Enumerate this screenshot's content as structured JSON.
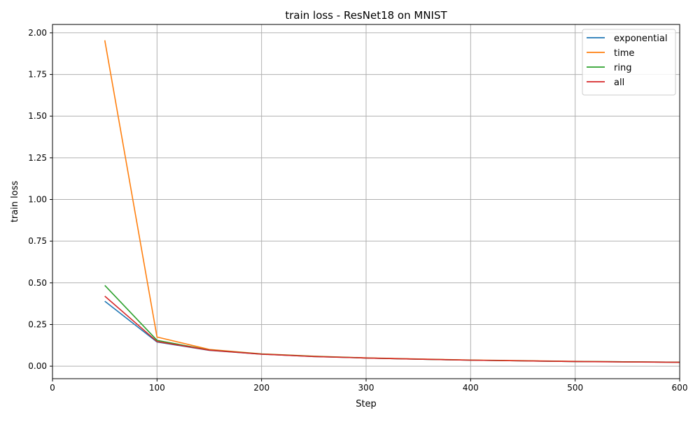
{
  "chart_data": {
    "type": "line",
    "title": "train loss - ResNet18 on MNIST",
    "xlabel": "Step",
    "ylabel": "train loss",
    "xlim": [
      0,
      600
    ],
    "ylim": [
      -0.075,
      2.05
    ],
    "xticks": [
      0,
      100,
      200,
      300,
      400,
      500,
      600
    ],
    "xtick_labels": [
      "0",
      "100",
      "200",
      "300",
      "400",
      "500",
      "600"
    ],
    "yticks": [
      0,
      0.25,
      0.5,
      0.75,
      1.0,
      1.25,
      1.5,
      1.75,
      2.0
    ],
    "ytick_labels": [
      "0.00",
      "0.25",
      "0.50",
      "0.75",
      "1.00",
      "1.25",
      "1.50",
      "1.75",
      "2.00"
    ],
    "grid": true,
    "legend_position": "top-right",
    "x": [
      50,
      100,
      150,
      200,
      250,
      300,
      350,
      400,
      450,
      500,
      550,
      600
    ],
    "series": [
      {
        "name": "exponential",
        "color": "#1f77b4",
        "values": [
          0.39,
          0.145,
          0.095,
          0.072,
          0.058,
          0.049,
          0.042,
          0.036,
          0.032,
          0.028,
          0.026,
          0.024
        ]
      },
      {
        "name": "time",
        "color": "#ff7f0e",
        "values": [
          1.955,
          0.175,
          0.1,
          0.074,
          0.06,
          0.05,
          0.043,
          0.037,
          0.033,
          0.029,
          0.026,
          0.024
        ]
      },
      {
        "name": "ring",
        "color": "#2ca02c",
        "values": [
          0.485,
          0.155,
          0.097,
          0.073,
          0.059,
          0.049,
          0.042,
          0.036,
          0.032,
          0.028,
          0.026,
          0.024
        ]
      },
      {
        "name": "all",
        "color": "#d62728",
        "values": [
          0.42,
          0.148,
          0.096,
          0.072,
          0.058,
          0.049,
          0.042,
          0.036,
          0.032,
          0.028,
          0.025,
          0.023
        ]
      }
    ]
  }
}
